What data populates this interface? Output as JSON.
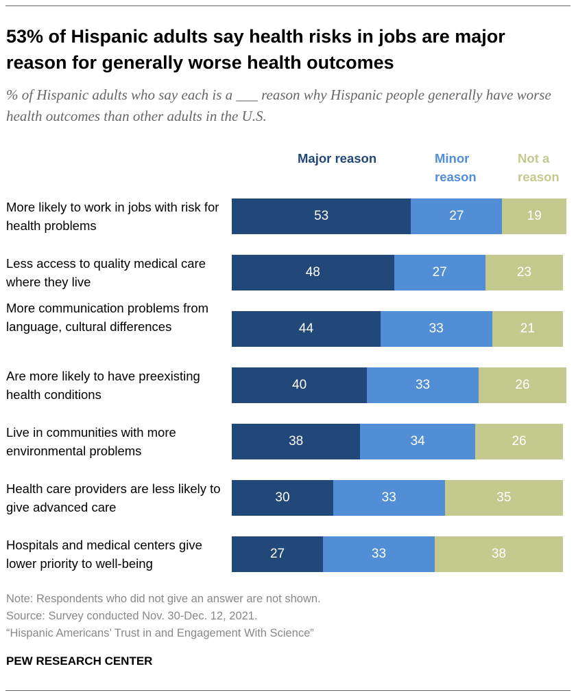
{
  "title": "53% of Hispanic adults say health risks in jobs are major reason for generally worse health outcomes",
  "subtitle": "% of Hispanic adults who say each is a ___ reason why Hispanic people generally have worse health outcomes than other adults in the U.S.",
  "chart_data": {
    "type": "bar",
    "orientation": "horizontal-stacked",
    "categories": [
      "More likely to work in jobs with risk for health problems",
      "Less access to quality medical care where they live",
      "More communication problems from language, cultural differences",
      "Are more likely to have preexisting health conditions",
      "Live in communities with more environmental problems",
      "Health care providers are less likely to give advanced care",
      "Hospitals and medical centers give lower priority to well-being"
    ],
    "series": [
      {
        "name": "Major reason",
        "color": "#214879",
        "values": [
          53,
          48,
          44,
          40,
          38,
          30,
          27
        ]
      },
      {
        "name": "Minor reason",
        "color": "#528ed5",
        "values": [
          27,
          27,
          33,
          33,
          34,
          33,
          33
        ]
      },
      {
        "name": "Not a reason",
        "color": "#c4c98e",
        "values": [
          19,
          23,
          21,
          26,
          26,
          35,
          38
        ]
      }
    ],
    "xlim": [
      0,
      100
    ],
    "grid": false,
    "legend": "top"
  },
  "notes": [
    "Note: Respondents who did not give an answer are not shown.",
    "Source: Survey conducted Nov. 30-Dec. 12, 2021.",
    "“Hispanic Americans’ Trust in and Engagement With Science”"
  ],
  "brand": "PEW RESEARCH CENTER"
}
